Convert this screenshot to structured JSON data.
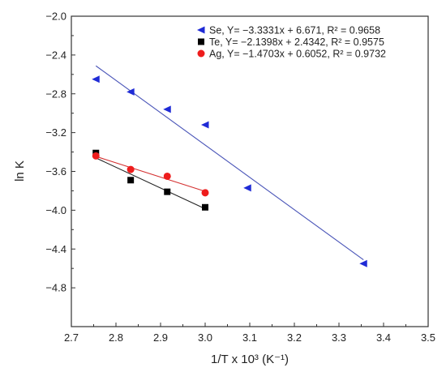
{
  "chart_data": {
    "type": "scatter",
    "xlabel": "1/T x 10³ (K⁻¹)",
    "ylabel": "ln K",
    "xlim": [
      2.7,
      3.5
    ],
    "ylim": [
      -5.2,
      -2.0
    ],
    "x_ticks": [
      "2.7",
      "2.8",
      "2.9",
      "3.0",
      "3.1",
      "3.2",
      "3.3",
      "3.4",
      "3.5"
    ],
    "y_ticks": [
      "−2.0",
      "−2.4",
      "−2.8",
      "−3.2",
      "−3.6",
      "−4.0",
      "−4.4",
      "−4.8"
    ],
    "grid": false,
    "legend_position": "top-right",
    "series": [
      {
        "name": "Se",
        "equation": "Se, Y= −3.3331x + 6.671, R² = 0.9658",
        "marker": "triangle-left",
        "color": "#1f2bd6",
        "line_color": "#4a55b8",
        "fit": {
          "slope": -3.3331,
          "intercept": 6.671
        },
        "fit_range": [
          2.755,
          3.355
        ],
        "points": [
          {
            "x": 2.755,
            "y": -2.65
          },
          {
            "x": 2.833,
            "y": -2.78
          },
          {
            "x": 2.915,
            "y": -2.96
          },
          {
            "x": 3.0,
            "y": -3.12
          },
          {
            "x": 3.095,
            "y": -3.77
          },
          {
            "x": 3.355,
            "y": -4.55
          }
        ]
      },
      {
        "name": "Te",
        "equation": "Te, Y= −2.1398x + 2.4342, R² = 0.9575",
        "marker": "square",
        "color": "#000000",
        "line_color": "#222222",
        "fit": {
          "slope": -2.1398,
          "intercept": 2.4342
        },
        "fit_range": [
          2.755,
          3.0
        ],
        "points": [
          {
            "x": 2.755,
            "y": -3.41
          },
          {
            "x": 2.833,
            "y": -3.69
          },
          {
            "x": 2.915,
            "y": -3.81
          },
          {
            "x": 3.0,
            "y": -3.97
          }
        ]
      },
      {
        "name": "Ag",
        "equation": "Ag, Y= −1.4703x + 0.6052, R² = 0.9732",
        "marker": "circle",
        "color": "#ee1c1c",
        "line_color": "#d43030",
        "fit": {
          "slope": -1.4703,
          "intercept": 0.6052
        },
        "fit_range": [
          2.755,
          3.0
        ],
        "points": [
          {
            "x": 2.755,
            "y": -3.44
          },
          {
            "x": 2.833,
            "y": -3.58
          },
          {
            "x": 2.915,
            "y": -3.65
          },
          {
            "x": 3.0,
            "y": -3.82
          }
        ]
      }
    ]
  }
}
